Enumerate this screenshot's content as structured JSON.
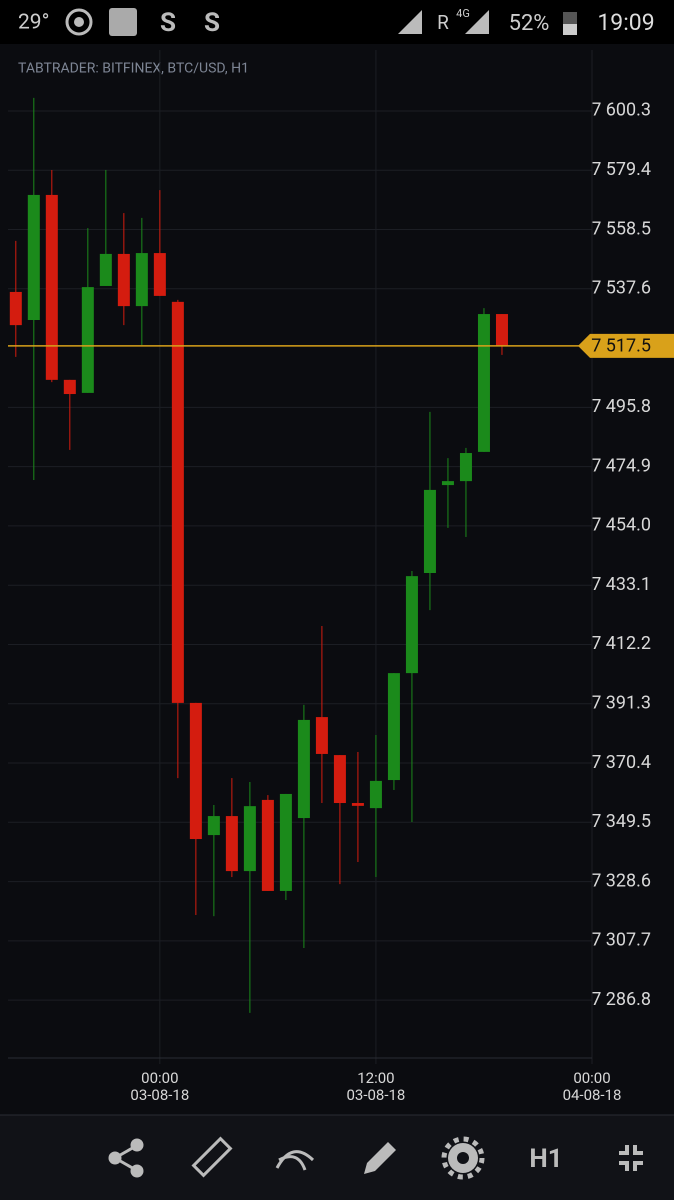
{
  "status_bar": {
    "temperature": "29°",
    "network": "R",
    "network_type": "4G",
    "battery": "52%",
    "time": "19:09"
  },
  "chart_data": {
    "type": "candlestick",
    "title": "TABTRADER: BITFINEX, BTC/USD, H1",
    "x": [
      "02-08-18 16:00",
      "02-08-18 17:00",
      "02-08-18 18:00",
      "02-08-18 19:00",
      "02-08-18 20:00",
      "02-08-18 21:00",
      "02-08-18 22:00",
      "02-08-18 23:00",
      "03-08-18 00:00",
      "03-08-18 01:00",
      "03-08-18 02:00",
      "03-08-18 03:00",
      "03-08-18 04:00",
      "03-08-18 05:00",
      "03-08-18 06:00",
      "03-08-18 07:00",
      "03-08-18 08:00",
      "03-08-18 09:00",
      "03-08-18 10:00",
      "03-08-18 11:00",
      "03-08-18 12:00",
      "03-08-18 13:00",
      "03-08-18 14:00",
      "03-08-18 15:00",
      "03-08-18 16:00",
      "03-08-18 17:00",
      "03-08-18 18:00",
      "03-08-18 19:00"
    ],
    "open": [
      7536.5,
      7526.6,
      7570.7,
      7505.5,
      7500.9,
      7538.6,
      7549.9,
      7531.5,
      7550.2,
      7533.0,
      7391.6,
      7345.0,
      7351.7,
      7332.3,
      7357.4,
      7325.3,
      7351.0,
      7386.6,
      7373.2,
      7356.3,
      7354.5,
      7364.4,
      7402.1,
      7437.4,
      7468.4,
      7469.8,
      7480.1,
      7528.7
    ],
    "high": [
      7554.5,
      7604.9,
      7579.5,
      7505.5,
      7559.0,
      7579.5,
      7564.3,
      7562.6,
      7572.4,
      7533.7,
      7391.6,
      7355.6,
      7365.1,
      7363.7,
      7359.1,
      7359.5,
      7390.9,
      7418.7,
      7373.2,
      7374.3,
      7380.3,
      7402.1,
      7438.1,
      7494.2,
      7477.9,
      7481.5,
      7530.8,
      7528.7
    ],
    "low": [
      7513.6,
      7470.2,
      7504.7,
      7480.8,
      7500.9,
      7538.6,
      7524.8,
      7517.8,
      7535.1,
      7365.1,
      7316.8,
      7316.4,
      7330.2,
      7282.3,
      7325.3,
      7322.1,
      7305.2,
      7356.3,
      7327.7,
      7335.5,
      7330.2,
      7360.9,
      7349.6,
      7424.3,
      7453.3,
      7450.1,
      7480.1,
      7514.3
    ],
    "close": [
      7524.8,
      7570.7,
      7505.5,
      7500.5,
      7538.2,
      7549.9,
      7531.5,
      7550.2,
      7535.1,
      7391.6,
      7343.6,
      7351.7,
      7332.3,
      7355.2,
      7325.3,
      7359.5,
      7385.6,
      7373.6,
      7356.3,
      7355.3,
      7364.1,
      7402.1,
      7436.3,
      7466.7,
      7469.8,
      7479.7,
      7528.7,
      7517.5
    ],
    "up_color": "#1b8a1b",
    "down_color": "#d41c0f",
    "ylim": [
      7266.4,
      7621.8
    ],
    "yticks": [
      {
        "value": 7286.8,
        "label": "7 286.8"
      },
      {
        "value": 7307.7,
        "label": "7 307.7"
      },
      {
        "value": 7328.6,
        "label": "7 328.6"
      },
      {
        "value": 7349.5,
        "label": "7 349.5"
      },
      {
        "value": 7370.4,
        "label": "7 370.4"
      },
      {
        "value": 7391.3,
        "label": "7 391.3"
      },
      {
        "value": 7412.2,
        "label": "7 412.2"
      },
      {
        "value": 7433.1,
        "label": "7 433.1"
      },
      {
        "value": 7454.0,
        "label": "7 454.0"
      },
      {
        "value": 7474.9,
        "label": "7 474.9"
      },
      {
        "value": 7495.8,
        "label": "7 495.8"
      },
      {
        "value": 7537.6,
        "label": "7 537.6"
      },
      {
        "value": 7558.5,
        "label": "7 558.5"
      },
      {
        "value": 7579.4,
        "label": "7 579.4"
      },
      {
        "value": 7600.3,
        "label": "7 600.3"
      }
    ],
    "xlim": [
      "02-08-18 15:34",
      "04-08-18 00:00"
    ],
    "xticks": [
      {
        "value": "03-08-18 00:00",
        "label": [
          "00:00",
          "03-08-18"
        ]
      },
      {
        "value": "03-08-18 12:00",
        "label": [
          "12:00",
          "03-08-18"
        ]
      },
      {
        "value": "04-08-18 00:00",
        "label": [
          "00:00",
          "04-08-18"
        ]
      }
    ],
    "grid": true,
    "price_line": {
      "value": 7517.5,
      "label": "7 517.5",
      "color": "#d9a11a"
    }
  },
  "toolbar": {
    "timeframe": "H1"
  }
}
